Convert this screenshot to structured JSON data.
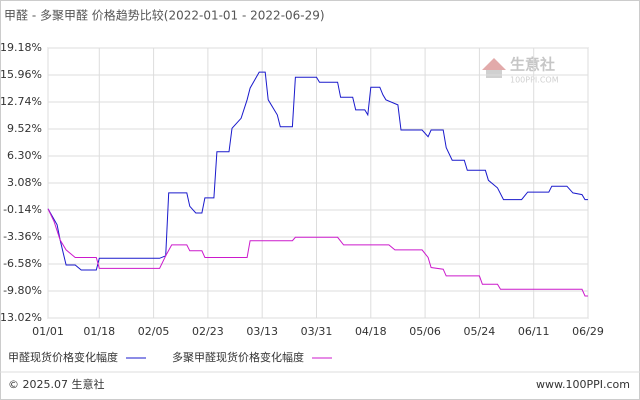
{
  "chart_data": {
    "type": "line",
    "title": "甲醛 - 多聚甲醛 价格趋势比较(2022-01-01 - 2022-06-29)",
    "xlim": [
      "01/01",
      "06/29"
    ],
    "xticks": [
      "01/01",
      "01/18",
      "02/05",
      "02/23",
      "03/13",
      "03/31",
      "04/18",
      "05/06",
      "05/24",
      "06/11",
      "06/29"
    ],
    "ylim": [
      -13.02,
      19.18
    ],
    "yticks": [
      {
        "value": -13.02,
        "label": "-13.02%"
      },
      {
        "value": -9.8,
        "label": "-9.80%"
      },
      {
        "value": -6.58,
        "label": "-6.58%"
      },
      {
        "value": -3.36,
        "label": "-3.36%"
      },
      {
        "value": -0.14,
        "label": "-0.14%"
      },
      {
        "value": 3.08,
        "label": "3.08%"
      },
      {
        "value": 6.3,
        "label": "6.30%"
      },
      {
        "value": 9.52,
        "label": "9.52%"
      },
      {
        "value": 12.74,
        "label": "12.74%"
      },
      {
        "value": 15.96,
        "label": "15.96%"
      },
      {
        "value": 19.18,
        "label": "19.18%"
      }
    ],
    "grid": true,
    "legend": "bottom",
    "series": [
      {
        "name": "甲醛现货价格变化幅度",
        "color": "#1a1acc",
        "x": [
          "01/01",
          "01/04",
          "01/05",
          "01/07",
          "01/10",
          "01/12",
          "01/17",
          "01/18",
          "02/07",
          "02/09",
          "02/10",
          "02/16",
          "02/17",
          "02/19",
          "02/21",
          "02/22",
          "02/25",
          "02/26",
          "03/02",
          "03/03",
          "03/06",
          "03/08",
          "03/09",
          "03/12",
          "03/14",
          "03/15",
          "03/18",
          "03/19",
          "03/23",
          "03/24",
          "03/31",
          "04/01",
          "04/07",
          "04/08",
          "04/12",
          "04/13",
          "04/16",
          "04/17",
          "04/18",
          "04/21",
          "04/22",
          "04/23",
          "04/27",
          "04/28",
          "05/05",
          "05/07",
          "05/08",
          "05/12",
          "05/13",
          "05/15",
          "05/19",
          "05/20",
          "05/26",
          "05/27",
          "05/30",
          "06/01",
          "06/07",
          "06/09",
          "06/16",
          "06/17",
          "06/22",
          "06/24",
          "06/27",
          "06/28",
          "06/29"
        ],
        "values": [
          0,
          -1.9,
          -3.7,
          -6.7,
          -6.7,
          -7.3,
          -7.3,
          -5.9,
          -5.9,
          -5.6,
          1.9,
          1.9,
          0.3,
          -0.5,
          -0.5,
          1.3,
          1.3,
          6.8,
          6.8,
          9.6,
          10.8,
          13.0,
          14.4,
          16.3,
          16.3,
          13.0,
          11.2,
          9.8,
          9.8,
          15.7,
          15.7,
          15.1,
          15.1,
          13.3,
          13.3,
          11.8,
          11.8,
          11.2,
          14.5,
          14.5,
          13.6,
          13.0,
          12.4,
          9.4,
          9.4,
          8.6,
          9.4,
          9.4,
          7.3,
          5.8,
          5.8,
          4.6,
          4.6,
          3.4,
          2.5,
          1.1,
          1.1,
          2.0,
          2.0,
          2.7,
          2.7,
          1.9,
          1.7,
          1.1,
          1.1
        ]
      },
      {
        "name": "多聚甲醛现货价格变化幅度",
        "color": "#cc1acc",
        "x": [
          "01/01",
          "01/03",
          "01/05",
          "01/07",
          "01/10",
          "01/17",
          "01/18",
          "02/07",
          "02/09",
          "02/11",
          "02/16",
          "02/17",
          "02/21",
          "02/22",
          "03/08",
          "03/09",
          "03/23",
          "03/24",
          "04/07",
          "04/09",
          "04/24",
          "04/26",
          "05/05",
          "05/07",
          "05/08",
          "05/12",
          "05/13",
          "05/24",
          "05/25",
          "05/30",
          "05/31",
          "06/27",
          "06/28",
          "06/29"
        ],
        "values": [
          0,
          -1.5,
          -3.7,
          -4.9,
          -5.8,
          -5.8,
          -7.1,
          -7.1,
          -5.6,
          -4.3,
          -4.3,
          -5.0,
          -5.0,
          -5.8,
          -5.8,
          -3.8,
          -3.8,
          -3.4,
          -3.4,
          -4.3,
          -4.3,
          -4.9,
          -4.9,
          -5.8,
          -7.0,
          -7.2,
          -8.0,
          -8.0,
          -9.0,
          -9.0,
          -9.6,
          -9.6,
          -10.4,
          -10.4
        ]
      }
    ]
  },
  "watermark": {
    "name": "生意社",
    "site": "100PPI.COM"
  },
  "footer": {
    "copyright": "© 2025.07 生意社",
    "site": "www.100PPI.com"
  }
}
